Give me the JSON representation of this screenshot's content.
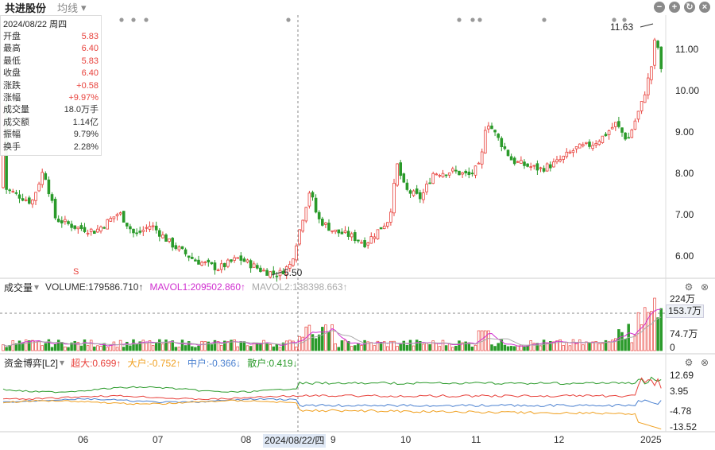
{
  "header": {
    "title": "共进股份",
    "ma_select": "均线",
    "chevron": "▾"
  },
  "window_controls": [
    "−",
    "+",
    "↻",
    "×"
  ],
  "infobox": {
    "date": "2024/08/22 周四",
    "rows": [
      {
        "k": "开盘",
        "v": "5.83",
        "red": true
      },
      {
        "k": "最高",
        "v": "6.40",
        "red": true
      },
      {
        "k": "最低",
        "v": "5.83",
        "red": true
      },
      {
        "k": "收盘",
        "v": "6.40",
        "red": true
      },
      {
        "k": "涨跌",
        "v": "+0.58",
        "red": true
      },
      {
        "k": "涨幅",
        "v": "+9.97%",
        "red": true
      },
      {
        "k": "成交量",
        "v": "18.0万手",
        "red": false
      },
      {
        "k": "成交额",
        "v": "1.14亿",
        "red": false
      },
      {
        "k": "振幅",
        "v": "9.79%",
        "red": false
      },
      {
        "k": "换手",
        "v": "2.28%",
        "red": false
      }
    ]
  },
  "price_axis": [
    "11.00",
    "10.00",
    "9.00",
    "8.00",
    "7.00",
    "6.00"
  ],
  "price_annotations": {
    "high": "11.63",
    "low": "5.50",
    "signal": "S"
  },
  "volume_panel": {
    "name": "成交量",
    "items": [
      {
        "text": "VOLUME:179586.710↑",
        "color": "#333333"
      },
      {
        "text": "MAVOL1:209502.860↑",
        "color": "#d030d0"
      },
      {
        "text": "MAVOL2:138398.663↑",
        "color": "#aaaaaa"
      }
    ],
    "axis": [
      "224万",
      "74.7万",
      "0"
    ],
    "highlight": "153.7万"
  },
  "fund_panel": {
    "name": "资金博弈[L2]",
    "items": [
      {
        "text": "超大:0.699↑",
        "color": "#e8423c"
      },
      {
        "text": "大户:-0.752↑",
        "color": "#f0a020"
      },
      {
        "text": "中户:-0.366↓",
        "color": "#4a80d0"
      },
      {
        "text": "散户:0.419↓",
        "color": "#2a9a2a"
      }
    ],
    "axis": [
      "12.69",
      "3.95",
      "-4.78",
      "-13.52"
    ]
  },
  "x_axis": [
    "06",
    "07",
    "08",
    "9",
    "10",
    "11",
    "12",
    "2025"
  ],
  "x_highlight": "2024/08/22/四",
  "colors": {
    "up": "#e8423c",
    "down": "#2a9a2a",
    "mavol1": "#d030d0",
    "mavol2": "#aaaaaa"
  }
}
